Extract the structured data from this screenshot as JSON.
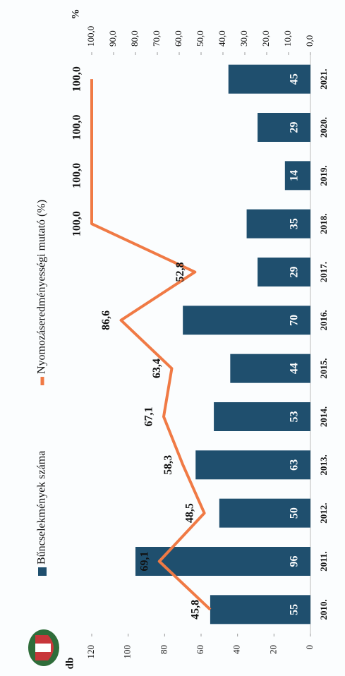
{
  "chart_data": {
    "type": "bar",
    "y_label": "db",
    "y2_label": "%",
    "categories": [
      "2010.",
      "2011.",
      "2012.",
      "2013.",
      "2014.",
      "2015.",
      "2016.",
      "2017.",
      "2018.",
      "2019.",
      "2020.",
      "2021."
    ],
    "series": [
      {
        "name": "Bűncselekmények száma",
        "color": "#1f4f6e",
        "type": "bar",
        "values": [
          55,
          96,
          50,
          63,
          53,
          44,
          70,
          29,
          35,
          14,
          29,
          45
        ]
      },
      {
        "name": "Nyomozáseredményességi mutató (%)",
        "color": "#f07a45",
        "type": "line",
        "axis": "y2",
        "values": [
          45.8,
          69.1,
          48.5,
          58.3,
          67.1,
          63.4,
          86.6,
          52.8,
          100,
          100,
          100,
          100
        ],
        "value_labels": [
          "45,8",
          "69,1",
          "48,5",
          "58,3",
          "67,1",
          "63,4",
          "86,6",
          "52,8",
          "100,0",
          "100,0",
          "100,0",
          "100,0"
        ]
      }
    ],
    "ylim": [
      0,
      120
    ],
    "yticks": [
      0,
      20,
      40,
      60,
      80,
      100,
      120
    ],
    "y2lim": [
      0,
      100
    ],
    "y2ticks": [
      {
        "value": 0,
        "label": "0,0"
      },
      {
        "value": 10,
        "label": "10,0"
      },
      {
        "value": 20,
        "label": "20,0"
      },
      {
        "value": 30,
        "label": "30,0"
      },
      {
        "value": 40,
        "label": "40,0"
      },
      {
        "value": 50,
        "label": "50,0"
      },
      {
        "value": 60,
        "label": "60,0"
      },
      {
        "value": 70,
        "label": "70,0"
      },
      {
        "value": 80,
        "label": "80,0"
      },
      {
        "value": 90,
        "label": "90,0"
      },
      {
        "value": 100,
        "label": "100,0"
      }
    ],
    "grid": false
  }
}
